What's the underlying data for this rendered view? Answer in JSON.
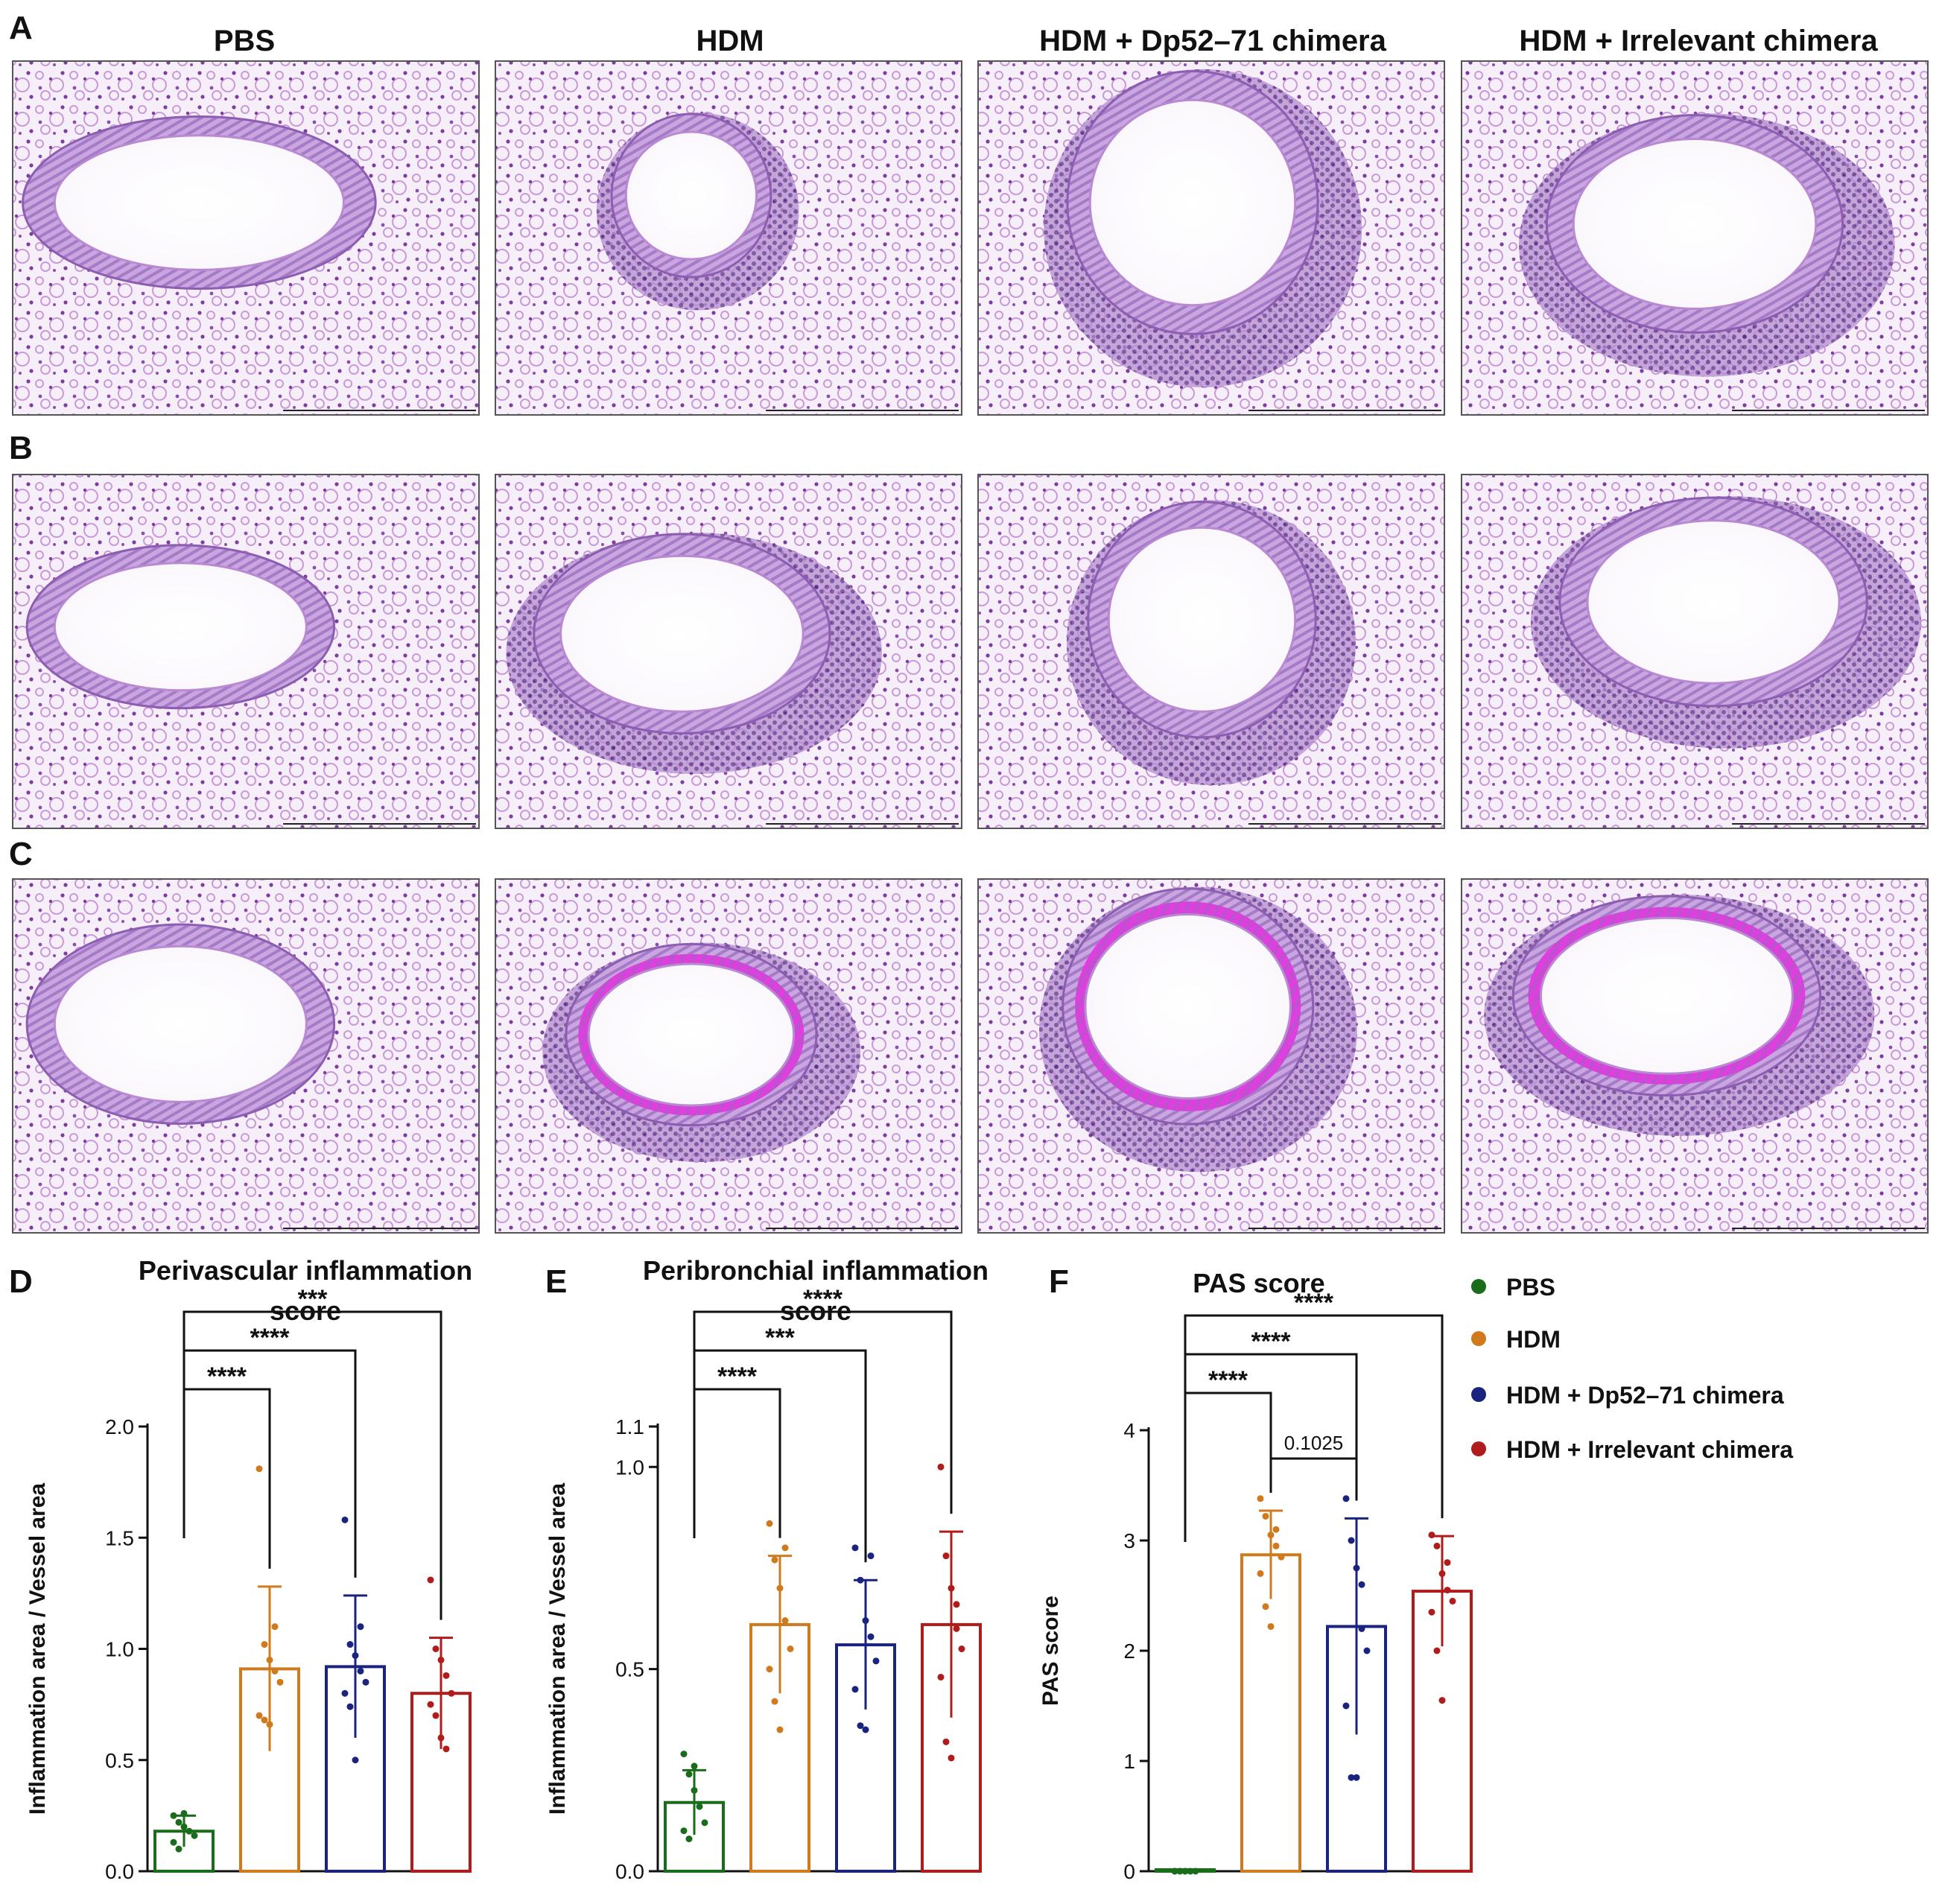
{
  "panel_letters": [
    "A",
    "B",
    "C",
    "D",
    "E",
    "F"
  ],
  "columns": [
    "PBS",
    "HDM",
    "HDM + Dp52–71 chimera",
    "HDM + Irrelevant chimera"
  ],
  "legend": [
    {
      "label": "PBS",
      "color": "#1a6b1a"
    },
    {
      "label": "HDM",
      "color": "#d07a1e"
    },
    {
      "label": "HDM + Dp52–71 chimera",
      "color": "#1a237e"
    },
    {
      "label": "HDM + Irrelevant chimera",
      "color": "#b01c1c"
    }
  ],
  "chart_data": [
    {
      "type": "bar",
      "panel": "D",
      "title": "Perivascular inflammation score",
      "ylabel": "Inflammation area / Vessel area",
      "ylim": [
        0,
        2.0
      ],
      "yticks": [
        0.0,
        0.5,
        1.0,
        1.5,
        2.0
      ],
      "ytick_labels": [
        "0.0",
        "0.5",
        "1.0",
        "1.5",
        "2.0"
      ],
      "categories": [
        "PBS",
        "HDM",
        "HDM + Dp52–71 chimera",
        "HDM + Irrelevant chimera"
      ],
      "values": [
        0.18,
        0.91,
        0.92,
        0.8
      ],
      "sd": [
        0.07,
        0.37,
        0.32,
        0.25
      ],
      "points": [
        [
          0.25,
          0.22,
          0.2,
          0.18,
          0.16,
          0.13,
          0.1,
          0.26
        ],
        [
          1.81,
          1.02,
          0.95,
          0.9,
          0.85,
          0.7,
          0.68,
          0.66,
          1.1
        ],
        [
          1.58,
          1.02,
          0.97,
          0.9,
          0.85,
          0.8,
          0.74,
          0.5,
          1.1
        ],
        [
          1.31,
          1.0,
          0.95,
          0.88,
          0.8,
          0.75,
          0.7,
          0.6,
          0.55
        ]
      ],
      "comparisons": [
        {
          "from": 0,
          "to": 1,
          "label": "****"
        },
        {
          "from": 0,
          "to": 2,
          "label": "****"
        },
        {
          "from": 0,
          "to": 3,
          "label": "***"
        }
      ]
    },
    {
      "type": "bar",
      "panel": "E",
      "title": "Peribronchial inflammation score",
      "ylabel": "Inflammation area / Vessel area",
      "ylim": [
        0,
        1.1
      ],
      "yticks": [
        0.0,
        0.5,
        1.0,
        1.1
      ],
      "ytick_labels": [
        "0.0",
        "0.5",
        "1.0",
        "1.1"
      ],
      "categories": [
        "PBS",
        "HDM",
        "HDM + Dp52–71 chimera",
        "HDM + Irrelevant chimera"
      ],
      "values": [
        0.17,
        0.61,
        0.56,
        0.61
      ],
      "sd": [
        0.08,
        0.17,
        0.16,
        0.23
      ],
      "points": [
        [
          0.29,
          0.24,
          0.2,
          0.16,
          0.12,
          0.1,
          0.08,
          0.26
        ],
        [
          0.86,
          0.77,
          0.7,
          0.62,
          0.55,
          0.5,
          0.42,
          0.35,
          0.8
        ],
        [
          0.8,
          0.72,
          0.62,
          0.58,
          0.52,
          0.45,
          0.36,
          0.35,
          0.78
        ],
        [
          1.0,
          0.78,
          0.7,
          0.6,
          0.55,
          0.48,
          0.32,
          0.28,
          0.66
        ]
      ],
      "comparisons": [
        {
          "from": 0,
          "to": 1,
          "label": "****"
        },
        {
          "from": 0,
          "to": 2,
          "label": "***"
        },
        {
          "from": 0,
          "to": 3,
          "label": "****"
        }
      ]
    },
    {
      "type": "bar",
      "panel": "F",
      "title": "PAS score",
      "ylabel": "PAS score",
      "ylim": [
        0,
        4
      ],
      "yticks": [
        0,
        1,
        2,
        3,
        4
      ],
      "ytick_labels": [
        "0",
        "1",
        "2",
        "3",
        "4"
      ],
      "categories": [
        "PBS",
        "HDM",
        "HDM + Dp52–71 chimera",
        "HDM + Irrelevant chimera"
      ],
      "values": [
        0.0,
        2.87,
        2.22,
        2.54
      ],
      "sd": [
        0.0,
        0.4,
        0.98,
        0.5
      ],
      "points": [
        [
          0,
          0,
          0,
          0,
          0,
          0,
          0,
          0
        ],
        [
          3.38,
          3.22,
          3.05,
          2.95,
          2.85,
          2.7,
          2.4,
          2.22,
          3.1
        ],
        [
          3.38,
          3.0,
          2.75,
          2.2,
          2.0,
          1.5,
          0.85,
          0.85,
          2.6
        ],
        [
          3.05,
          2.95,
          2.7,
          2.55,
          2.45,
          2.35,
          2.0,
          1.55,
          2.8
        ]
      ],
      "comparisons": [
        {
          "from": 0,
          "to": 1,
          "label": "****"
        },
        {
          "from": 0,
          "to": 2,
          "label": "****"
        },
        {
          "from": 0,
          "to": 3,
          "label": "****"
        },
        {
          "from": 1,
          "to": 2,
          "label": "0.1025"
        }
      ]
    }
  ]
}
